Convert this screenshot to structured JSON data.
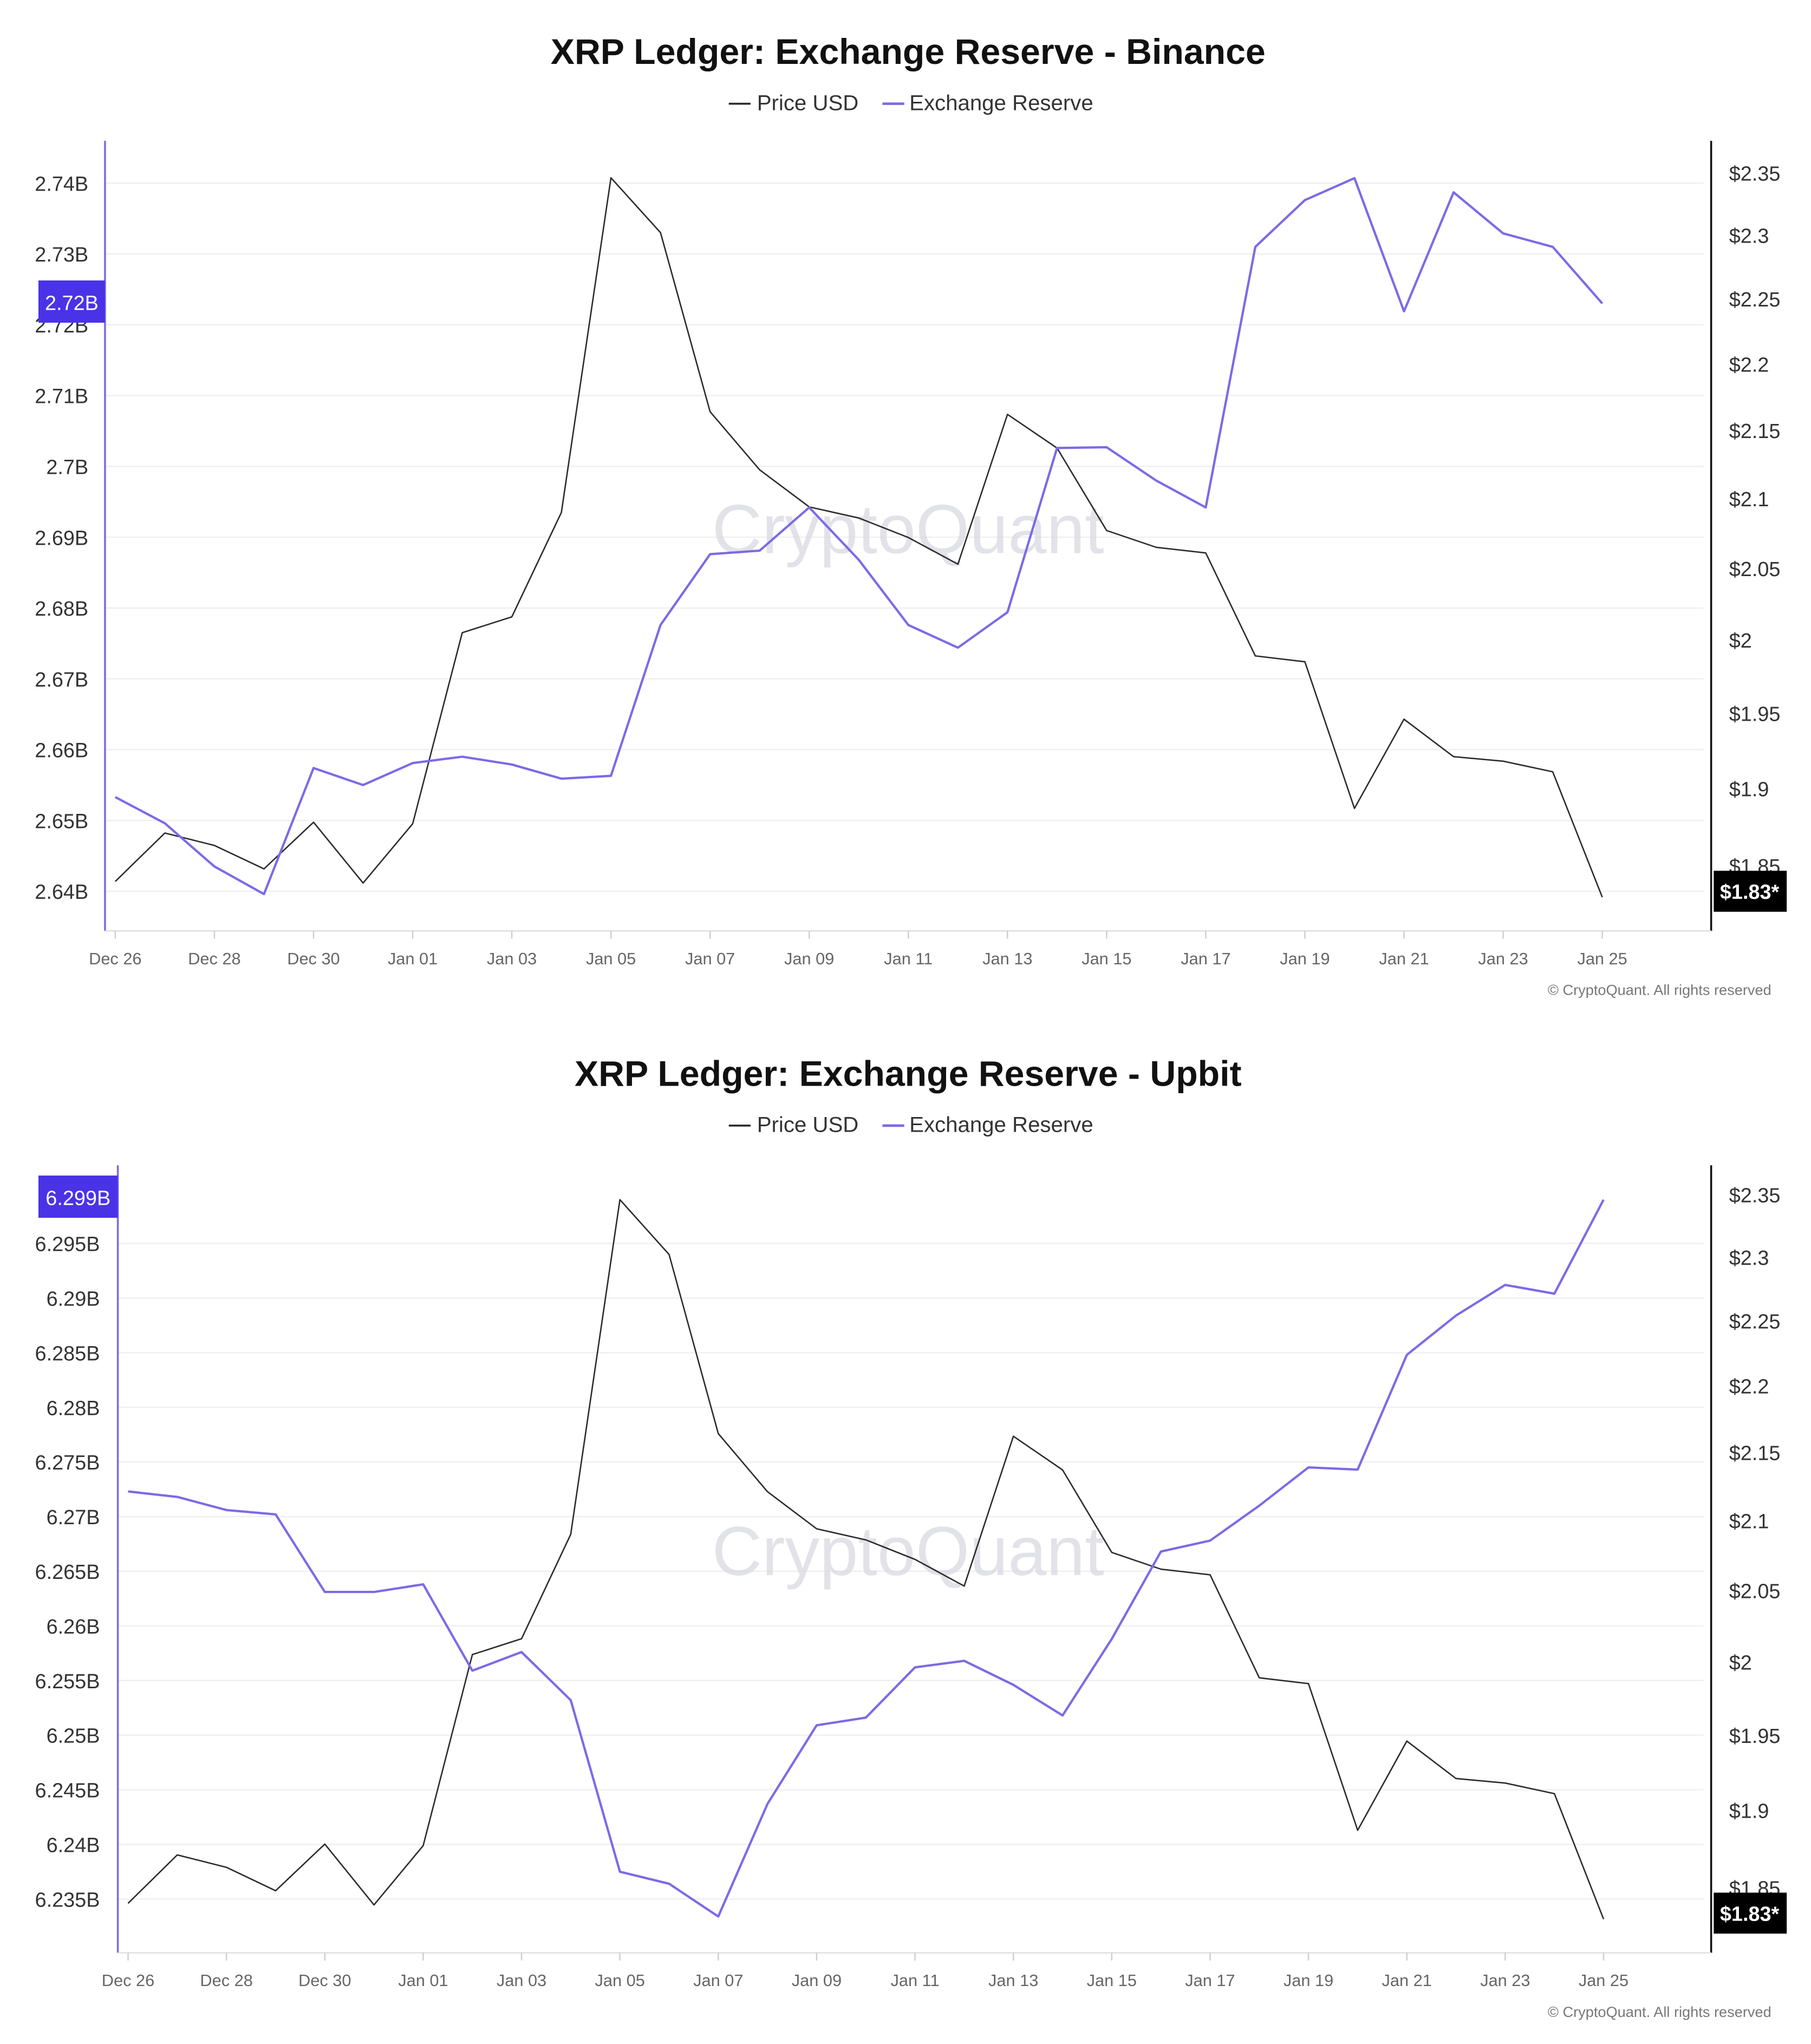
{
  "colors": {
    "price": "#2b2b2b",
    "reserve": "#7b6be6",
    "reserve_label_bg": "#4a33e6",
    "price_label_bg": "#000000",
    "grid": "#efefef"
  },
  "watermark": "CryptoQuant",
  "copyright": "© CryptoQuant. All rights reserved",
  "chart_data": [
    {
      "type": "line",
      "title": "XRP Ledger: Exchange Reserve - Binance",
      "legend": [
        "Price USD",
        "Exchange Reserve"
      ],
      "x": [
        "Dec 26",
        "Dec 27",
        "Dec 28",
        "Dec 29",
        "Dec 30",
        "Dec 31",
        "Jan 01",
        "Jan 02",
        "Jan 03",
        "Jan 04",
        "Jan 05",
        "Jan 06",
        "Jan 07",
        "Jan 08",
        "Jan 09",
        "Jan 10",
        "Jan 11",
        "Jan 12",
        "Jan 13",
        "Jan 14",
        "Jan 15",
        "Jan 16",
        "Jan 17",
        "Jan 18",
        "Jan 19",
        "Jan 20",
        "Jan 21",
        "Jan 22",
        "Jan 23",
        "Jan 24",
        "Jan 25"
      ],
      "x_tick_labels": [
        "Dec 26",
        "Dec 28",
        "Dec 30",
        "Jan 01",
        "Jan 03",
        "Jan 05",
        "Jan 07",
        "Jan 09",
        "Jan 11",
        "Jan 13",
        "Jan 15",
        "Jan 17",
        "Jan 19",
        "Jan 21",
        "Jan 23",
        "Jan 25"
      ],
      "left_axis": {
        "unit": "B",
        "ticks": [
          2.64,
          2.65,
          2.66,
          2.67,
          2.68,
          2.69,
          2.7,
          2.71,
          2.72,
          2.73,
          2.74
        ],
        "tick_labels": [
          "2.64B",
          "2.65B",
          "2.66B",
          "2.67B",
          "2.68B",
          "2.69B",
          "2.7B",
          "2.71B",
          "2.72B",
          "2.73B",
          "2.74B"
        ],
        "current_label": "2.72B"
      },
      "right_axis": {
        "scale": "log",
        "ticks": [
          1.85,
          1.9,
          1.95,
          2.0,
          2.05,
          2.1,
          2.15,
          2.2,
          2.25,
          2.3,
          2.35
        ],
        "tick_labels": [
          "$1.85",
          "$1.9",
          "$1.95",
          "$2",
          "$2.05",
          "$2.1",
          "$2.15",
          "$2.2",
          "$2.25",
          "$2.3",
          "$2.35"
        ],
        "current_label": "$1.83*"
      },
      "series": [
        {
          "name": "Price USD",
          "axis": "right",
          "values": [
            1.84,
            1.871,
            1.863,
            1.848,
            1.878,
            1.839,
            1.877,
            2.005,
            2.016,
            2.09,
            2.346,
            2.302,
            2.164,
            2.121,
            2.094,
            2.086,
            2.072,
            2.053,
            2.162,
            2.137,
            2.077,
            2.065,
            2.061,
            1.989,
            1.985,
            1.887,
            1.946,
            1.921,
            1.918,
            1.911,
            1.83
          ]
        },
        {
          "name": "Exchange Reserve",
          "axis": "left",
          "values": [
            2.6533,
            2.6496,
            2.6435,
            2.6396,
            2.6574,
            2.655,
            2.6581,
            2.659,
            2.6579,
            2.6559,
            2.6563,
            2.6776,
            2.6876,
            2.6881,
            2.6942,
            2.6868,
            2.6776,
            2.6744,
            2.6794,
            2.7026,
            2.7027,
            2.698,
            2.6942,
            2.731,
            2.7376,
            2.7407,
            2.7219,
            2.7387,
            2.7329,
            2.731,
            2.723
          ]
        }
      ]
    },
    {
      "type": "line",
      "title": "XRP Ledger: Exchange Reserve - Upbit",
      "legend": [
        "Price USD",
        "Exchange Reserve"
      ],
      "x": [
        "Dec 26",
        "Dec 27",
        "Dec 28",
        "Dec 29",
        "Dec 30",
        "Dec 31",
        "Jan 01",
        "Jan 02",
        "Jan 03",
        "Jan 04",
        "Jan 05",
        "Jan 06",
        "Jan 07",
        "Jan 08",
        "Jan 09",
        "Jan 10",
        "Jan 11",
        "Jan 12",
        "Jan 13",
        "Jan 14",
        "Jan 15",
        "Jan 16",
        "Jan 17",
        "Jan 18",
        "Jan 19",
        "Jan 20",
        "Jan 21",
        "Jan 22",
        "Jan 23",
        "Jan 24",
        "Jan 25"
      ],
      "x_tick_labels": [
        "Dec 26",
        "Dec 28",
        "Dec 30",
        "Jan 01",
        "Jan 03",
        "Jan 05",
        "Jan 07",
        "Jan 09",
        "Jan 11",
        "Jan 13",
        "Jan 15",
        "Jan 17",
        "Jan 19",
        "Jan 21",
        "Jan 23",
        "Jan 25"
      ],
      "left_axis": {
        "unit": "B",
        "ticks": [
          6.235,
          6.24,
          6.245,
          6.25,
          6.255,
          6.26,
          6.265,
          6.27,
          6.275,
          6.28,
          6.285,
          6.29,
          6.295
        ],
        "tick_labels": [
          "6.235B",
          "6.24B",
          "6.245B",
          "6.25B",
          "6.255B",
          "6.26B",
          "6.265B",
          "6.27B",
          "6.275B",
          "6.28B",
          "6.285B",
          "6.29B",
          "6.295B"
        ],
        "current_label": "6.299B"
      },
      "right_axis": {
        "scale": "log",
        "ticks": [
          1.85,
          1.9,
          1.95,
          2.0,
          2.05,
          2.1,
          2.15,
          2.2,
          2.25,
          2.3,
          2.35
        ],
        "tick_labels": [
          "$1.85",
          "$1.9",
          "$1.95",
          "$2",
          "$2.05",
          "$2.1",
          "$2.15",
          "$2.2",
          "$2.25",
          "$2.3",
          "$2.35"
        ],
        "current_label": "$1.83*"
      },
      "series": [
        {
          "name": "Price USD",
          "axis": "right",
          "values": [
            1.84,
            1.871,
            1.863,
            1.848,
            1.878,
            1.839,
            1.877,
            2.005,
            2.016,
            2.09,
            2.346,
            2.302,
            2.164,
            2.121,
            2.094,
            2.086,
            2.072,
            2.053,
            2.162,
            2.137,
            2.077,
            2.065,
            2.061,
            1.989,
            1.985,
            1.887,
            1.946,
            1.921,
            1.918,
            1.911,
            1.83
          ]
        },
        {
          "name": "Exchange Reserve",
          "axis": "left",
          "values": [
            6.2723,
            6.2718,
            6.2706,
            6.2702,
            6.2631,
            6.2631,
            6.2638,
            6.2559,
            6.2576,
            6.2532,
            6.2375,
            6.2364,
            6.2334,
            6.2437,
            6.2509,
            6.2516,
            6.2562,
            6.2568,
            6.2546,
            6.2518,
            6.2588,
            6.2668,
            6.2678,
            6.271,
            6.2745,
            6.2743,
            6.2848,
            6.2884,
            6.2912,
            6.2904,
            6.299
          ]
        }
      ]
    }
  ]
}
